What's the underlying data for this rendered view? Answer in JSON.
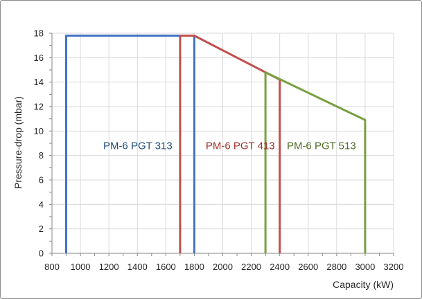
{
  "chart_data": {
    "type": "line",
    "title": "",
    "xlabel": "Capacity (kW)",
    "ylabel": "Pressure-drop (mbar)",
    "xlim": [
      800,
      3200
    ],
    "ylim": [
      0,
      18
    ],
    "xticks": [
      "800",
      "1000",
      "1200",
      "1400",
      "1600",
      "1800",
      "2000",
      "2200",
      "2400",
      "2600",
      "2800",
      "3000",
      "3200"
    ],
    "yticks": [
      "0",
      "2",
      "4",
      "6",
      "8",
      "10",
      "12",
      "14",
      "16",
      "18"
    ],
    "grid": true,
    "legend": "none",
    "series": [
      {
        "color": "#4472c4",
        "points": [
          [
            900,
            0
          ],
          [
            900,
            17.8
          ],
          [
            1800,
            17.8
          ],
          [
            1800,
            0
          ]
        ]
      },
      {
        "color": "#c0504d",
        "points": [
          [
            1700,
            0
          ],
          [
            1700,
            17.8
          ],
          [
            1800,
            17.8
          ],
          [
            2400,
            14.2
          ],
          [
            2400,
            0
          ]
        ]
      },
      {
        "color": "#77a040",
        "points": [
          [
            2300,
            0
          ],
          [
            2300,
            14.8
          ],
          [
            3000,
            10.9
          ],
          [
            3000,
            0
          ]
        ]
      }
    ],
    "annotations": [
      {
        "text": "PM-6 PGT 313",
        "x": 1160,
        "y": 8.8,
        "color": "#1f4e79"
      },
      {
        "text": "PM-6 PGT 413",
        "x": 1880,
        "y": 8.8,
        "color": "#a0302b"
      },
      {
        "text": "PM-6 PGT 513",
        "x": 2450,
        "y": 8.8,
        "color": "#4f6b28"
      }
    ]
  }
}
